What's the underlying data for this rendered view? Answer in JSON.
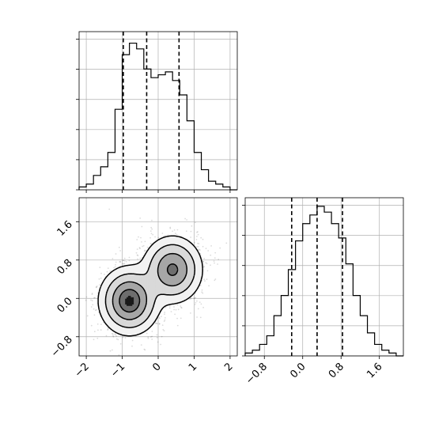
{
  "chart_data": [
    {
      "type": "histogram",
      "panel": "top-left",
      "xlim": [
        -2.2,
        2.2
      ],
      "bin_edges": [
        -2.2,
        -2.0,
        -1.8,
        -1.6,
        -1.4,
        -1.2,
        -1.0,
        -0.8,
        -0.6,
        -0.4,
        -0.2,
        0.0,
        0.2,
        0.4,
        0.6,
        0.8,
        1.0,
        1.2,
        1.4,
        1.6,
        1.8,
        2.0,
        2.2
      ],
      "counts": [
        1,
        2,
        5,
        8,
        13,
        28,
        47,
        51,
        49,
        42,
        39,
        40,
        41,
        38,
        33,
        24,
        13,
        7,
        3,
        2,
        1,
        0
      ],
      "ylim": [
        0,
        55
      ],
      "quantiles": [
        -0.97,
        -0.32,
        0.58
      ],
      "grid": true
    },
    {
      "type": "contour-scatter",
      "panel": "bottom-left",
      "xlim": [
        -2.2,
        2.2
      ],
      "ylim": [
        -1.2,
        2.1
      ],
      "x_ticks": [
        "−2",
        "−1",
        "0",
        "1",
        "2"
      ],
      "x_tick_values": [
        -2,
        -1,
        0,
        1,
        2
      ],
      "y_ticks": [
        "−0.8",
        "0.0",
        "0.8",
        "1.6"
      ],
      "y_tick_values": [
        -0.8,
        0.0,
        0.8,
        1.6
      ],
      "modes": [
        {
          "x": -0.8,
          "y": -0.05,
          "sx": 0.38,
          "sy": 0.32,
          "w": 0.55
        },
        {
          "x": 0.4,
          "y": 0.6,
          "sx": 0.38,
          "sy": 0.32,
          "w": 0.45
        }
      ],
      "grid": true
    },
    {
      "type": "histogram",
      "panel": "bottom-right",
      "xlim": [
        -1.2,
        2.1
      ],
      "bin_edges": [
        -1.2,
        -1.05,
        -0.9,
        -0.75,
        -0.6,
        -0.45,
        -0.3,
        -0.15,
        0.0,
        0.15,
        0.3,
        0.45,
        0.6,
        0.75,
        0.9,
        1.05,
        1.2,
        1.35,
        1.5,
        1.65,
        1.8,
        1.95,
        2.1
      ],
      "counts": [
        1,
        2,
        4,
        7,
        14,
        21,
        30,
        40,
        46,
        49,
        52,
        50,
        46,
        41,
        32,
        21,
        14,
        8,
        4,
        2,
        1,
        0
      ],
      "ylim": [
        0,
        55
      ],
      "quantiles": [
        -0.23,
        0.3,
        0.83
      ],
      "x_ticks": [
        "−0.8",
        "0.0",
        "0.8",
        "1.6"
      ],
      "x_tick_values": [
        -0.8,
        0.0,
        0.8,
        1.6
      ],
      "grid": true
    }
  ]
}
